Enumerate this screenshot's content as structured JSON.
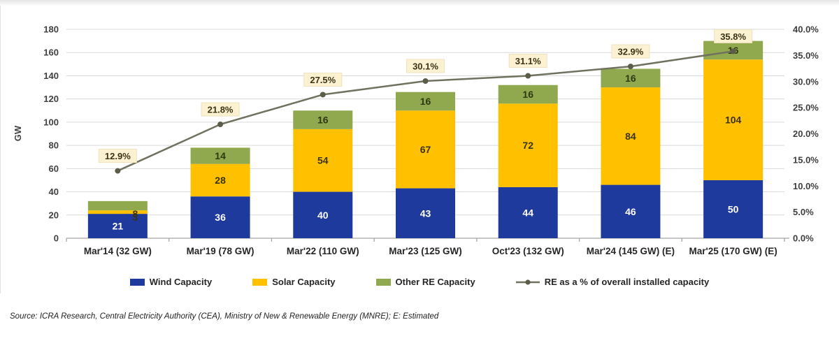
{
  "chart_data": {
    "type": "bar",
    "variant": "stacked-column-with-line",
    "categories": [
      "Mar'14 (32 GW)",
      "Mar'19 (78 GW)",
      "Mar'22 (110 GW)",
      "Mar'23 (125 GW)",
      "Oct'23 (132 GW)",
      "Mar'24 (145 GW) (E)",
      "Mar'25 (170 GW) (E)"
    ],
    "series": [
      {
        "name": "Wind Capacity",
        "color": "#1E3A9C",
        "label_color": "#FFFFFF",
        "values": [
          21,
          36,
          40,
          43,
          44,
          46,
          50
        ]
      },
      {
        "name": "Solar Capacity",
        "color": "#FFC000",
        "label_color": "#3A3413",
        "values": [
          3,
          28,
          54,
          67,
          72,
          84,
          104
        ]
      },
      {
        "name": "Other RE Capacity",
        "color": "#90A84E",
        "label_color": "#2E3A10",
        "values": [
          8,
          14,
          16,
          16,
          16,
          16,
          16
        ]
      }
    ],
    "line_series": {
      "name": "RE as a % of overall installed capacity",
      "color": "#71715F",
      "marker_color": "#5C5D49",
      "values": [
        12.9,
        21.8,
        27.5,
        30.1,
        31.1,
        32.9,
        35.8
      ],
      "labels": [
        "12.9%",
        "21.8%",
        "27.5%",
        "30.1%",
        "31.1%",
        "32.9%",
        "35.8%"
      ],
      "label_bg": "#FCF2D2",
      "label_border": "#EFE2BC",
      "label_text_color": "#3A3413"
    },
    "left_axis": {
      "title": "GW",
      "min": 0,
      "max": 180,
      "step": 20,
      "ticks": [
        "0",
        "20",
        "40",
        "60",
        "80",
        "100",
        "120",
        "140",
        "160",
        "180"
      ]
    },
    "right_axis": {
      "min": 0,
      "max": 40,
      "step": 5,
      "ticks": [
        "0.0%",
        "5.0%",
        "10.0%",
        "15.0%",
        "20.0%",
        "25.0%",
        "30.0%",
        "35.0%",
        "40.0%"
      ]
    },
    "grid": {
      "show": true,
      "color": "#D9D9D9",
      "axis_color": "#A6A6A6"
    },
    "legend_position": "bottom-center",
    "text_colors": {
      "axis_tick": "#404040",
      "category_label": "#262626"
    }
  },
  "source_note": "Source: ICRA Research, Central Electricity Authority (CEA), Ministry of New & Renewable Energy (MNRE); E: Estimated"
}
